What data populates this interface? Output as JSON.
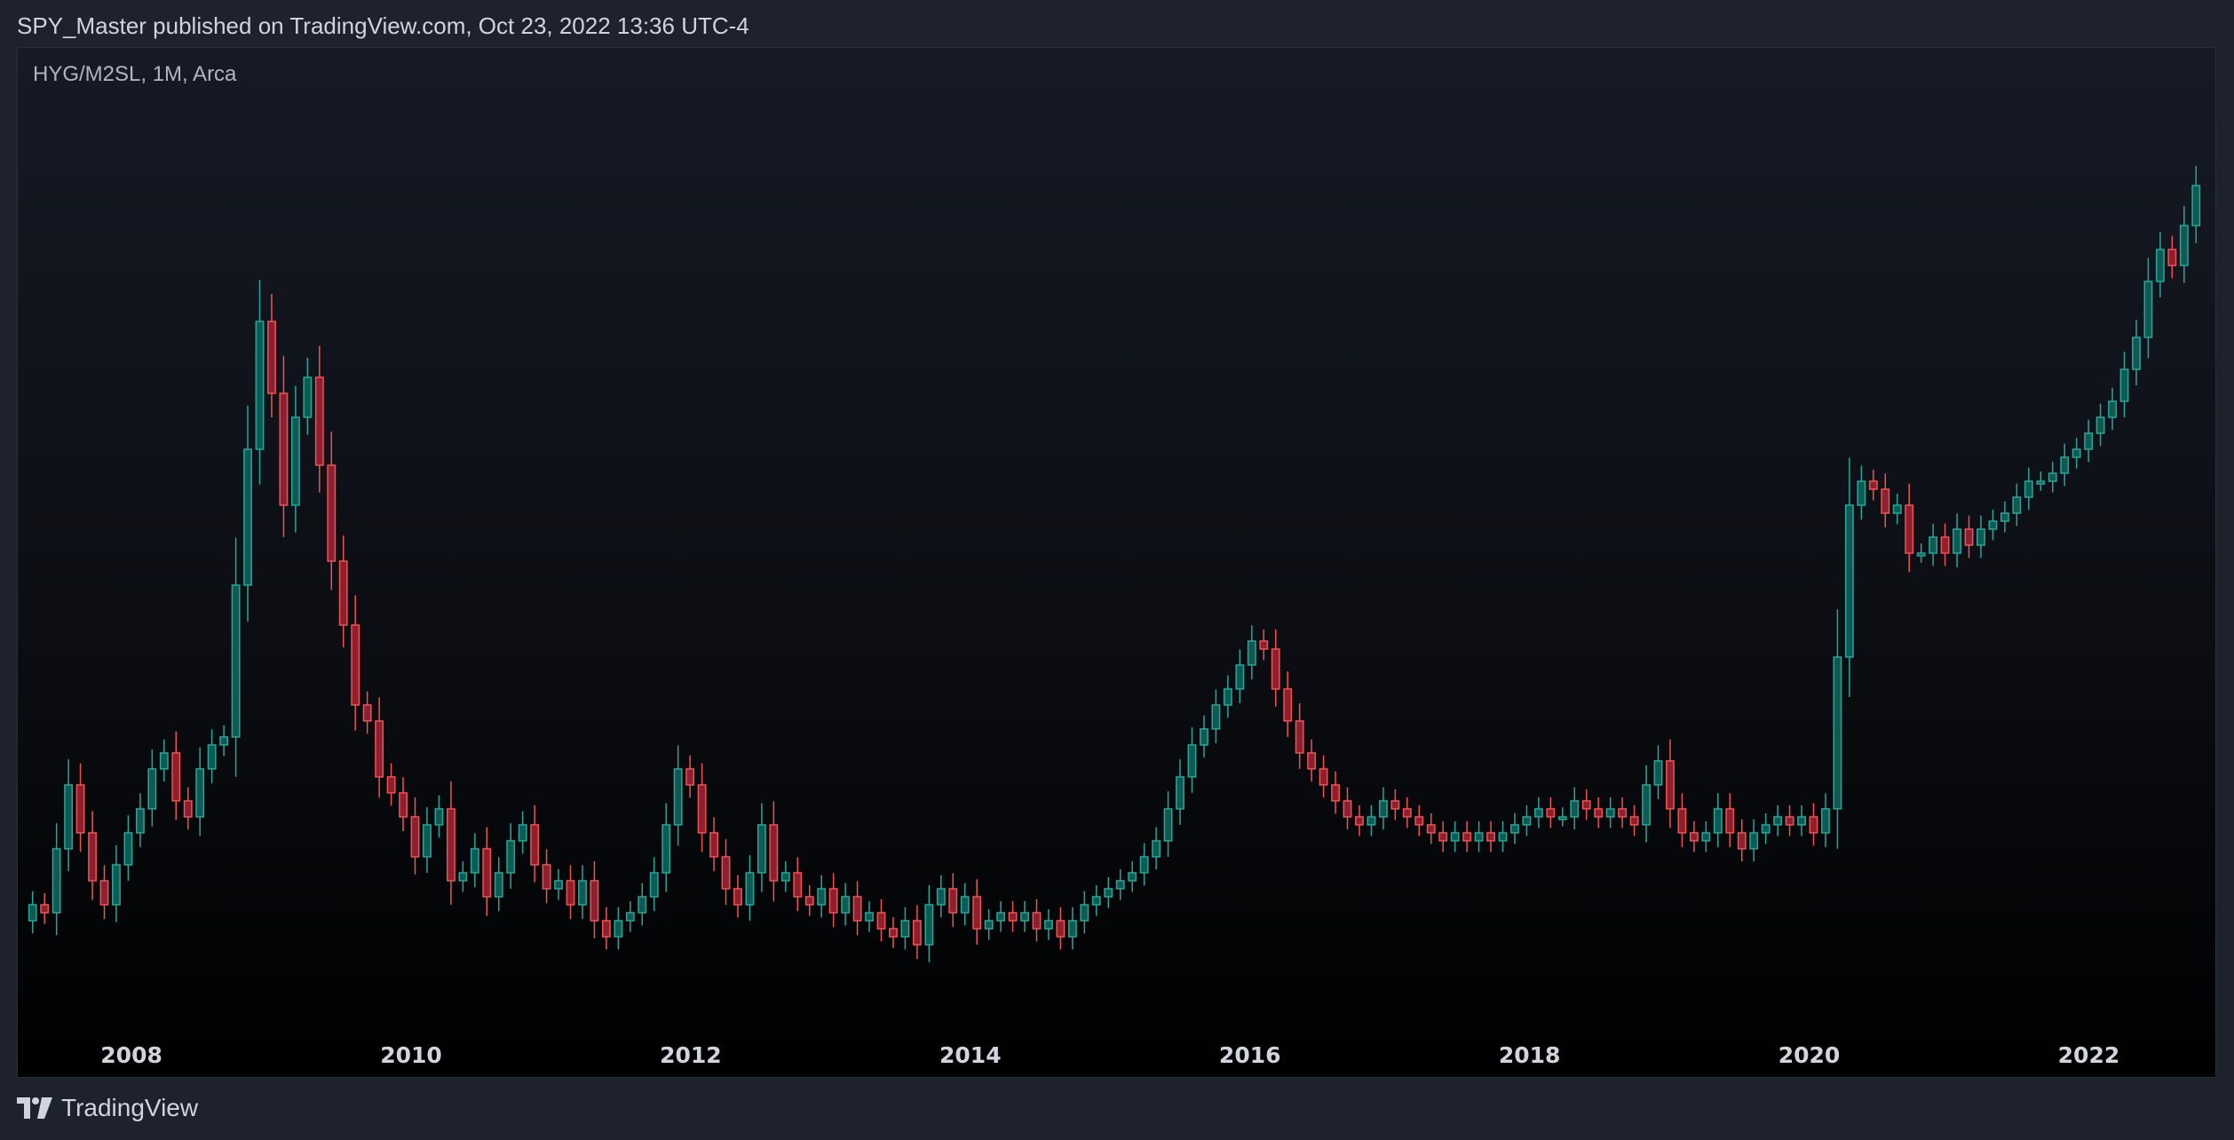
{
  "header": {
    "publisher_line": "SPY_Master published on TradingView.com, Oct 23, 2022 13:36 UTC-4"
  },
  "chart_header": {
    "symbol_line": "HYG/M2SL, 1M, Arca"
  },
  "footer": {
    "brand": "TradingView",
    "logo_icon": "tradingview-logo-icon"
  },
  "colors": {
    "up": "#26a69a",
    "down": "#ef5350",
    "panel_border": "#2a2e39",
    "text": "#d1d4dc"
  },
  "chart_data": {
    "type": "candlestick",
    "interval": "1M",
    "y_axis": "hidden",
    "y_units": "relative price level (no axis printed)",
    "ylim": [
      0,
      100
    ],
    "x_range": [
      2007.25,
      2022.81
    ],
    "x_ticks": [
      "2008",
      "2010",
      "2012",
      "2014",
      "2016",
      "2018",
      "2020",
      "2022"
    ],
    "grid": false,
    "closes": [
      5,
      4,
      12,
      20,
      14,
      8,
      5,
      10,
      14,
      17,
      22,
      24,
      18,
      16,
      22,
      25,
      26,
      45,
      62,
      78,
      69,
      55,
      66,
      71,
      60,
      48,
      40,
      30,
      28,
      21,
      19,
      16,
      11,
      15,
      17,
      8,
      9,
      12,
      6,
      9,
      13,
      15,
      10,
      7,
      8,
      5,
      8,
      3,
      1,
      3,
      4,
      6,
      9,
      15,
      22,
      20,
      14,
      11,
      7,
      5,
      9,
      15,
      8,
      9,
      6,
      5,
      7,
      4,
      6,
      3,
      4,
      2,
      1,
      3,
      0,
      5,
      7,
      4,
      6,
      2,
      3,
      4,
      3,
      4,
      2,
      3,
      1,
      3,
      5,
      6,
      7,
      8,
      9,
      11,
      13,
      17,
      21,
      25,
      27,
      30,
      32,
      35,
      38,
      37,
      32,
      28,
      24,
      22,
      20,
      18,
      16,
      15,
      16,
      18,
      17,
      16,
      15,
      14,
      13,
      14,
      13,
      14,
      13,
      14,
      15,
      16,
      17,
      16,
      16,
      18,
      17,
      16,
      17,
      16,
      15,
      20,
      23,
      17,
      14,
      13,
      14,
      17,
      14,
      12,
      14,
      15,
      16,
      15,
      16,
      14,
      17,
      36,
      55,
      58,
      57,
      54,
      55,
      49,
      49,
      51,
      49,
      52,
      50,
      52,
      53,
      54,
      56,
      58,
      58,
      59,
      61,
      62,
      64,
      66,
      68,
      72,
      76,
      83,
      87,
      85,
      90,
      95
    ]
  }
}
